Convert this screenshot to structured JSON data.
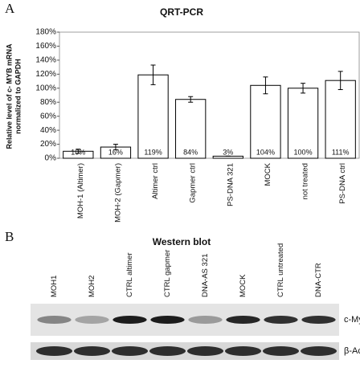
{
  "chart_data": {
    "type": "bar",
    "panel": "A",
    "title": "QRT-PCR",
    "y_label": [
      "Relative level of c- MYB mRNA",
      "normalized to GAPDH"
    ],
    "categories": [
      "MOH-1 (Altimer)",
      "MOH-2 (Gapmer)",
      "Altimer ctrl",
      "Gapmer ctrl",
      "PS-DNA 321",
      "MOCK",
      "not treated",
      "PS-DNA ctrl"
    ],
    "values": [
      10,
      16,
      119,
      84,
      3,
      104,
      100,
      111
    ],
    "value_labels": [
      "10%",
      "16%",
      "119%",
      "84%",
      "3%",
      "104%",
      "100%",
      "111%"
    ],
    "errors": [
      3,
      4,
      14,
      4,
      0,
      12,
      7,
      13
    ],
    "color": "#ffffff",
    "ylim": [
      0,
      180
    ],
    "yticks": [
      {
        "value": 0,
        "label": "0%"
      },
      {
        "value": 20,
        "label": "20%"
      },
      {
        "value": 40,
        "label": "40%"
      },
      {
        "value": 60,
        "label": "60%"
      },
      {
        "value": 80,
        "label": "80%"
      },
      {
        "value": 100,
        "label": "100%"
      },
      {
        "value": 120,
        "label": "120%"
      },
      {
        "value": 140,
        "label": "140%"
      },
      {
        "value": 160,
        "label": "160%"
      },
      {
        "value": 180,
        "label": "180%"
      }
    ],
    "grid": false
  },
  "western_blot": {
    "panel": "B",
    "title": "Western blot",
    "lanes": [
      "MOH1",
      "MOH2",
      "CTRL altimer",
      "CTRL gapmer",
      "DNA-AS 321",
      "MOCK",
      "CTRL untreated",
      "DNA-CTR"
    ],
    "bands": [
      "c-Myb",
      "β-Actin"
    ]
  }
}
